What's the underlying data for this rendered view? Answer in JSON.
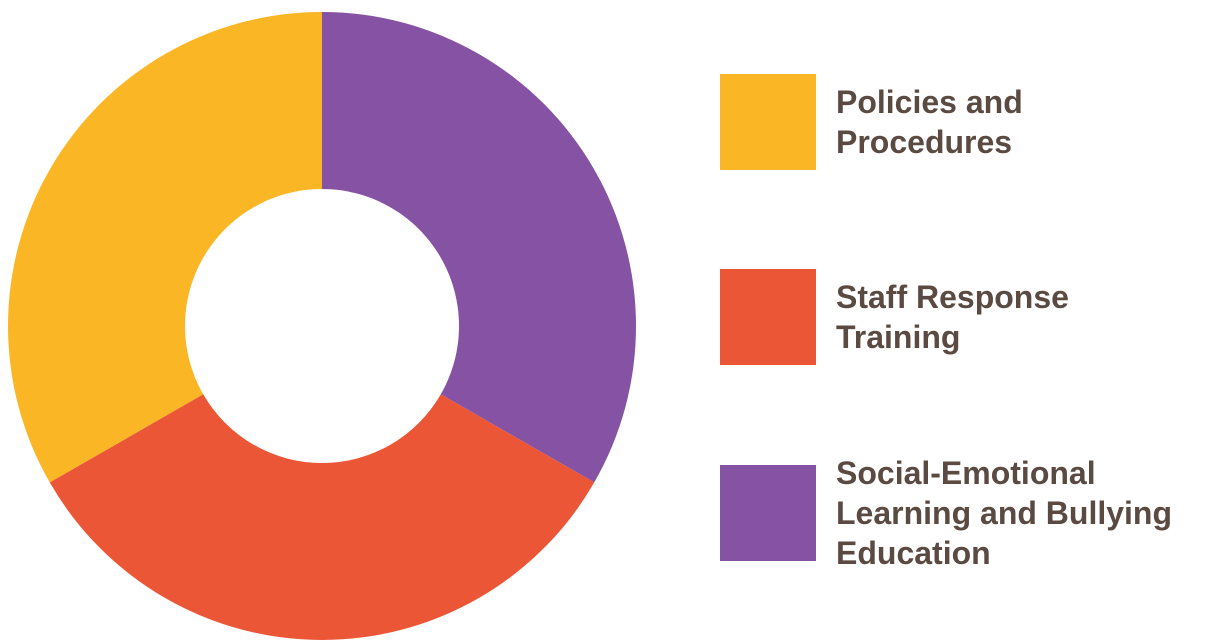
{
  "chart_data": {
    "type": "pie",
    "variant": "donut",
    "categories": [
      "Social-Emotional\nLearning and Bullying\nEducation",
      "Staff Response\nTraining",
      "Policies and\nProcedures"
    ],
    "values": [
      33.3,
      33.4,
      33.3
    ],
    "colors": [
      "#8652a3",
      "#eb5637",
      "#fbb626"
    ],
    "legend_position": "right",
    "title": "",
    "xlabel": "",
    "ylabel": ""
  },
  "legend": {
    "items": [
      {
        "label": "Policies and\nProcedures",
        "color": "#fbb626"
      },
      {
        "label": "Staff Response\nTraining",
        "color": "#eb5637"
      },
      {
        "label": "Social-Emotional\nLearning and Bullying\nEducation",
        "color": "#8652a3"
      }
    ]
  }
}
